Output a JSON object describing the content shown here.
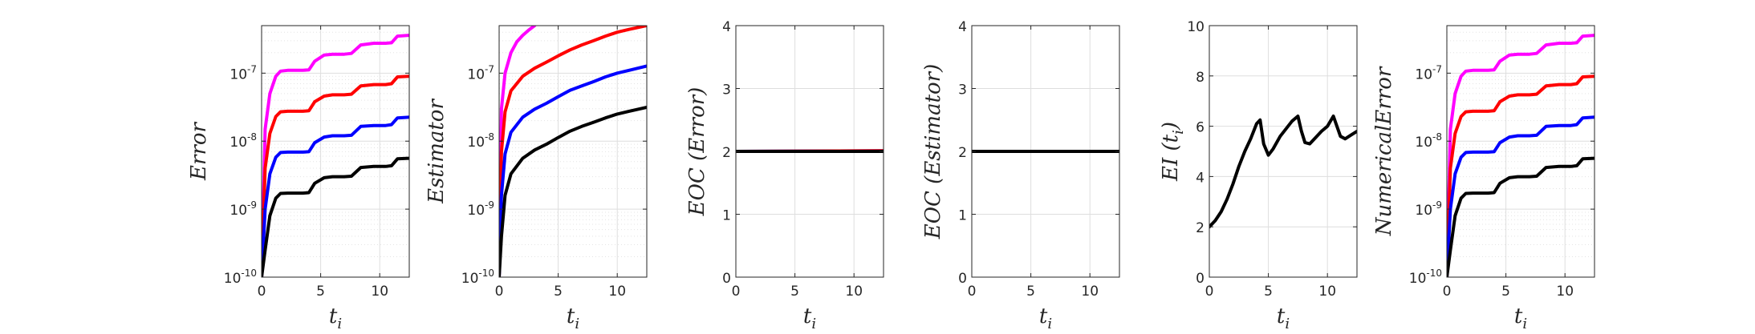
{
  "chart_data": [
    {
      "type": "line",
      "ylabel": "Error",
      "xlabel": "t_i",
      "yscale": "log",
      "ylim": [
        1e-10,
        5e-07
      ],
      "xlim": [
        0,
        12.5
      ],
      "grid": true,
      "xticks": [
        0,
        5,
        10
      ],
      "yticks": [
        {
          "base": "10",
          "exp": "-10",
          "value": 1e-10
        },
        {
          "base": "10",
          "exp": "-9",
          "value": 1e-09
        },
        {
          "base": "10",
          "exp": "-8",
          "value": 1e-08
        },
        {
          "base": "10",
          "exp": "-7",
          "value": 1e-07
        }
      ],
      "series": [
        {
          "color": "#ff00ff",
          "x": [
            0,
            0.3,
            0.7,
            1.2,
            1.6,
            2.2,
            2.5,
            3.5,
            4.0,
            4.5,
            5.3,
            6.0,
            7.0,
            7.6,
            8.4,
            9.5,
            10.5,
            11.0,
            11.5,
            12.5
          ],
          "y": [
            1e-10,
            1.5e-08,
            5e-08,
            9e-08,
            1.07e-07,
            1.1e-07,
            1.1e-07,
            1.1e-07,
            1.12e-07,
            1.5e-07,
            1.85e-07,
            1.9e-07,
            1.9e-07,
            1.95e-07,
            2.6e-07,
            2.75e-07,
            2.75e-07,
            2.8e-07,
            3.5e-07,
            3.6e-07
          ]
        },
        {
          "color": "#ff0000",
          "x": [
            0,
            0.3,
            0.7,
            1.2,
            1.6,
            2.2,
            2.5,
            3.5,
            4.0,
            4.5,
            5.3,
            6.0,
            7.0,
            7.6,
            8.4,
            9.5,
            10.5,
            11.0,
            11.5,
            12.5
          ],
          "y": [
            1e-10,
            4e-09,
            1.3e-08,
            2.3e-08,
            2.7e-08,
            2.75e-08,
            2.75e-08,
            2.75e-08,
            2.8e-08,
            3.8e-08,
            4.6e-08,
            4.8e-08,
            4.8e-08,
            4.9e-08,
            6.5e-08,
            6.8e-08,
            6.8e-08,
            7e-08,
            8.8e-08,
            9e-08
          ]
        },
        {
          "color": "#0000ff",
          "x": [
            0,
            0.3,
            0.7,
            1.2,
            1.6,
            2.2,
            2.5,
            3.5,
            4.0,
            4.5,
            5.3,
            6.0,
            7.0,
            7.6,
            8.4,
            9.5,
            10.5,
            11.0,
            11.5,
            12.5
          ],
          "y": [
            1e-10,
            1e-09,
            3.3e-09,
            5.8e-09,
            6.8e-09,
            6.9e-09,
            6.9e-09,
            6.9e-09,
            7e-09,
            9.5e-09,
            1.15e-08,
            1.2e-08,
            1.2e-08,
            1.22e-08,
            1.65e-08,
            1.7e-08,
            1.7e-08,
            1.75e-08,
            2.2e-08,
            2.25e-08
          ]
        },
        {
          "color": "#000000",
          "x": [
            0,
            0.3,
            0.7,
            1.2,
            1.6,
            2.2,
            2.5,
            3.5,
            4.0,
            4.5,
            5.3,
            6.0,
            7.0,
            7.6,
            8.4,
            9.5,
            10.5,
            11.0,
            11.5,
            12.5
          ],
          "y": [
            1e-10,
            2.5e-10,
            8e-10,
            1.45e-09,
            1.7e-09,
            1.72e-09,
            1.72e-09,
            1.72e-09,
            1.75e-09,
            2.4e-09,
            2.9e-09,
            3e-09,
            3e-09,
            3.05e-09,
            4.1e-09,
            4.25e-09,
            4.25e-09,
            4.35e-09,
            5.5e-09,
            5.6e-09
          ]
        }
      ]
    },
    {
      "type": "line",
      "ylabel": "Estimator",
      "xlabel": "t_i",
      "yscale": "log",
      "ylim": [
        1e-10,
        5e-07
      ],
      "xlim": [
        0,
        12.5
      ],
      "grid": true,
      "xticks": [
        0,
        5,
        10
      ],
      "yticks": [
        {
          "base": "10",
          "exp": "-10",
          "value": 1e-10
        },
        {
          "base": "10",
          "exp": "-9",
          "value": 1e-09
        },
        {
          "base": "10",
          "exp": "-8",
          "value": 1e-08
        },
        {
          "base": "10",
          "exp": "-7",
          "value": 1e-07
        }
      ],
      "series": [
        {
          "color": "#ff00ff",
          "x": [
            0,
            0.2,
            0.5,
            1.0,
            1.5,
            2.0,
            2.5,
            3.0
          ],
          "y": [
            1e-10,
            3e-08,
            1e-07,
            2e-07,
            2.9e-07,
            3.6e-07,
            4.3e-07,
            5e-07
          ]
        },
        {
          "color": "#ff0000",
          "x": [
            0,
            0.2,
            0.5,
            1.0,
            2.0,
            3.0,
            4.0,
            5.0,
            6.0,
            7.0,
            8.0,
            9.0,
            10.0,
            11.0,
            12.5
          ],
          "y": [
            1e-10,
            7e-09,
            2.7e-08,
            5.5e-08,
            9e-08,
            1.18e-07,
            1.45e-07,
            1.8e-07,
            2.2e-07,
            2.6e-07,
            3e-07,
            3.5e-07,
            4e-07,
            4.4e-07,
            5e-07
          ]
        },
        {
          "color": "#0000ff",
          "x": [
            0,
            0.2,
            0.5,
            1.0,
            2.0,
            3.0,
            4.0,
            5.0,
            6.0,
            7.0,
            8.0,
            9.0,
            10.0,
            11.0,
            12.5
          ],
          "y": [
            1e-10,
            1.6e-09,
            6.5e-09,
            1.35e-08,
            2.25e-08,
            2.95e-08,
            3.6e-08,
            4.5e-08,
            5.6e-08,
            6.5e-08,
            7.5e-08,
            8.8e-08,
            1e-07,
            1.1e-07,
            1.27e-07
          ]
        },
        {
          "color": "#000000",
          "x": [
            0,
            0.2,
            0.5,
            1.0,
            2.0,
            3.0,
            4.0,
            5.0,
            6.0,
            7.0,
            8.0,
            9.0,
            10.0,
            11.0,
            12.5
          ],
          "y": [
            1e-10,
            4e-10,
            1.6e-09,
            3.3e-09,
            5.6e-09,
            7.4e-09,
            9e-09,
            1.13e-08,
            1.4e-08,
            1.65e-08,
            1.9e-08,
            2.2e-08,
            2.5e-08,
            2.75e-08,
            3.15e-08
          ]
        }
      ]
    },
    {
      "type": "line",
      "ylabel": "EOC (Error)",
      "xlabel": "t_i",
      "yscale": "linear",
      "ylim": [
        0,
        4
      ],
      "xlim": [
        0,
        12.5
      ],
      "grid": true,
      "xticks": [
        0,
        5,
        10
      ],
      "yticks": [
        {
          "base": "0",
          "value": 0
        },
        {
          "base": "1",
          "value": 1
        },
        {
          "base": "2",
          "value": 2
        },
        {
          "base": "3",
          "value": 3
        },
        {
          "base": "4",
          "value": 4
        }
      ],
      "series": [
        {
          "color": "#0000ff",
          "x": [
            0,
            12.5
          ],
          "y": [
            2.0,
            2.01
          ]
        },
        {
          "color": "#ff0000",
          "x": [
            0,
            12.5
          ],
          "y": [
            2.0,
            2.01
          ]
        },
        {
          "color": "#000000",
          "x": [
            0,
            12.5
          ],
          "y": [
            2.0,
            2.0
          ]
        }
      ]
    },
    {
      "type": "line",
      "ylabel": "EOC (Estimator)",
      "xlabel": "t_i",
      "yscale": "linear",
      "ylim": [
        0,
        4
      ],
      "xlim": [
        0,
        12.5
      ],
      "grid": true,
      "xticks": [
        0,
        5,
        10
      ],
      "yticks": [
        {
          "base": "0",
          "value": 0
        },
        {
          "base": "1",
          "value": 1
        },
        {
          "base": "2",
          "value": 2
        },
        {
          "base": "3",
          "value": 3
        },
        {
          "base": "4",
          "value": 4
        }
      ],
      "series": [
        {
          "color": "#0000ff",
          "x": [
            0,
            12.5
          ],
          "y": [
            2.0,
            2.0
          ]
        },
        {
          "color": "#ff0000",
          "x": [
            0,
            12.5
          ],
          "y": [
            2.0,
            2.0
          ]
        },
        {
          "color": "#000000",
          "x": [
            0,
            12.5
          ],
          "y": [
            2.0,
            2.0
          ]
        }
      ]
    },
    {
      "type": "line",
      "ylabel": "EI (t_i)",
      "xlabel": "t_i",
      "yscale": "linear",
      "ylim": [
        0,
        10
      ],
      "xlim": [
        0,
        12.5
      ],
      "grid": true,
      "xticks": [
        0,
        5,
        10
      ],
      "yticks": [
        {
          "base": "0",
          "value": 0
        },
        {
          "base": "2",
          "value": 2
        },
        {
          "base": "4",
          "value": 4
        },
        {
          "base": "6",
          "value": 6
        },
        {
          "base": "8",
          "value": 8
        },
        {
          "base": "10",
          "value": 10
        }
      ],
      "series": [
        {
          "color": "#000000",
          "x": [
            0,
            0.5,
            1.0,
            1.5,
            2.0,
            2.5,
            3.0,
            3.5,
            4.0,
            4.3,
            4.6,
            5.0,
            5.4,
            6.0,
            6.5,
            7.0,
            7.5,
            7.8,
            8.1,
            8.5,
            9.0,
            9.5,
            10.0,
            10.5,
            10.8,
            11.1,
            11.5,
            12.0,
            12.5
          ],
          "y": [
            2.0,
            2.25,
            2.6,
            3.1,
            3.7,
            4.4,
            5.0,
            5.5,
            6.1,
            6.25,
            5.3,
            4.85,
            5.1,
            5.6,
            5.9,
            6.2,
            6.4,
            5.8,
            5.35,
            5.3,
            5.55,
            5.8,
            6.0,
            6.4,
            6.0,
            5.6,
            5.5,
            5.65,
            5.8
          ]
        }
      ]
    },
    {
      "type": "line",
      "ylabel": "NumericalError",
      "xlabel": "t_i",
      "yscale": "log",
      "ylim": [
        1e-10,
        5e-07
      ],
      "xlim": [
        0,
        12.5
      ],
      "grid": true,
      "xticks": [
        0,
        5,
        10
      ],
      "yticks": [
        {
          "base": "10",
          "exp": "-10",
          "value": 1e-10
        },
        {
          "base": "10",
          "exp": "-9",
          "value": 1e-09
        },
        {
          "base": "10",
          "exp": "-8",
          "value": 1e-08
        },
        {
          "base": "10",
          "exp": "-7",
          "value": 1e-07
        }
      ],
      "series": [
        {
          "color": "#ff00ff",
          "x": [
            0,
            0.3,
            0.7,
            1.2,
            1.6,
            2.2,
            2.5,
            3.5,
            4.0,
            4.5,
            5.3,
            6.0,
            7.0,
            7.6,
            8.4,
            9.5,
            10.5,
            11.0,
            11.5,
            12.5
          ],
          "y": [
            1e-10,
            1.5e-08,
            5e-08,
            9e-08,
            1.07e-07,
            1.1e-07,
            1.1e-07,
            1.1e-07,
            1.12e-07,
            1.5e-07,
            1.85e-07,
            1.9e-07,
            1.9e-07,
            1.95e-07,
            2.6e-07,
            2.75e-07,
            2.75e-07,
            2.8e-07,
            3.5e-07,
            3.6e-07
          ]
        },
        {
          "color": "#ff0000",
          "x": [
            0,
            0.3,
            0.7,
            1.2,
            1.6,
            2.2,
            2.5,
            3.5,
            4.0,
            4.5,
            5.3,
            6.0,
            7.0,
            7.6,
            8.4,
            9.5,
            10.5,
            11.0,
            11.5,
            12.5
          ],
          "y": [
            1e-10,
            4e-09,
            1.3e-08,
            2.3e-08,
            2.7e-08,
            2.75e-08,
            2.75e-08,
            2.75e-08,
            2.8e-08,
            3.8e-08,
            4.6e-08,
            4.8e-08,
            4.8e-08,
            4.9e-08,
            6.5e-08,
            6.8e-08,
            6.8e-08,
            7e-08,
            8.8e-08,
            9e-08
          ]
        },
        {
          "color": "#0000ff",
          "x": [
            0,
            0.3,
            0.7,
            1.2,
            1.6,
            2.2,
            2.5,
            3.5,
            4.0,
            4.5,
            5.3,
            6.0,
            7.0,
            7.6,
            8.4,
            9.5,
            10.5,
            11.0,
            11.5,
            12.5
          ],
          "y": [
            1e-10,
            1e-09,
            3.3e-09,
            5.8e-09,
            6.8e-09,
            6.9e-09,
            6.9e-09,
            6.9e-09,
            7e-09,
            9.5e-09,
            1.15e-08,
            1.2e-08,
            1.2e-08,
            1.22e-08,
            1.65e-08,
            1.7e-08,
            1.7e-08,
            1.75e-08,
            2.2e-08,
            2.25e-08
          ]
        },
        {
          "color": "#000000",
          "x": [
            0,
            0.3,
            0.7,
            1.2,
            1.6,
            2.2,
            2.5,
            3.5,
            4.0,
            4.5,
            5.3,
            6.0,
            7.0,
            7.6,
            8.4,
            9.5,
            10.5,
            11.0,
            11.5,
            12.5
          ],
          "y": [
            1e-10,
            2.5e-10,
            8e-10,
            1.45e-09,
            1.7e-09,
            1.72e-09,
            1.72e-09,
            1.72e-09,
            1.75e-09,
            2.4e-09,
            2.9e-09,
            3e-09,
            3e-09,
            3.05e-09,
            4.1e-09,
            4.25e-09,
            4.25e-09,
            4.35e-09,
            5.5e-09,
            5.6e-09
          ]
        }
      ]
    }
  ]
}
